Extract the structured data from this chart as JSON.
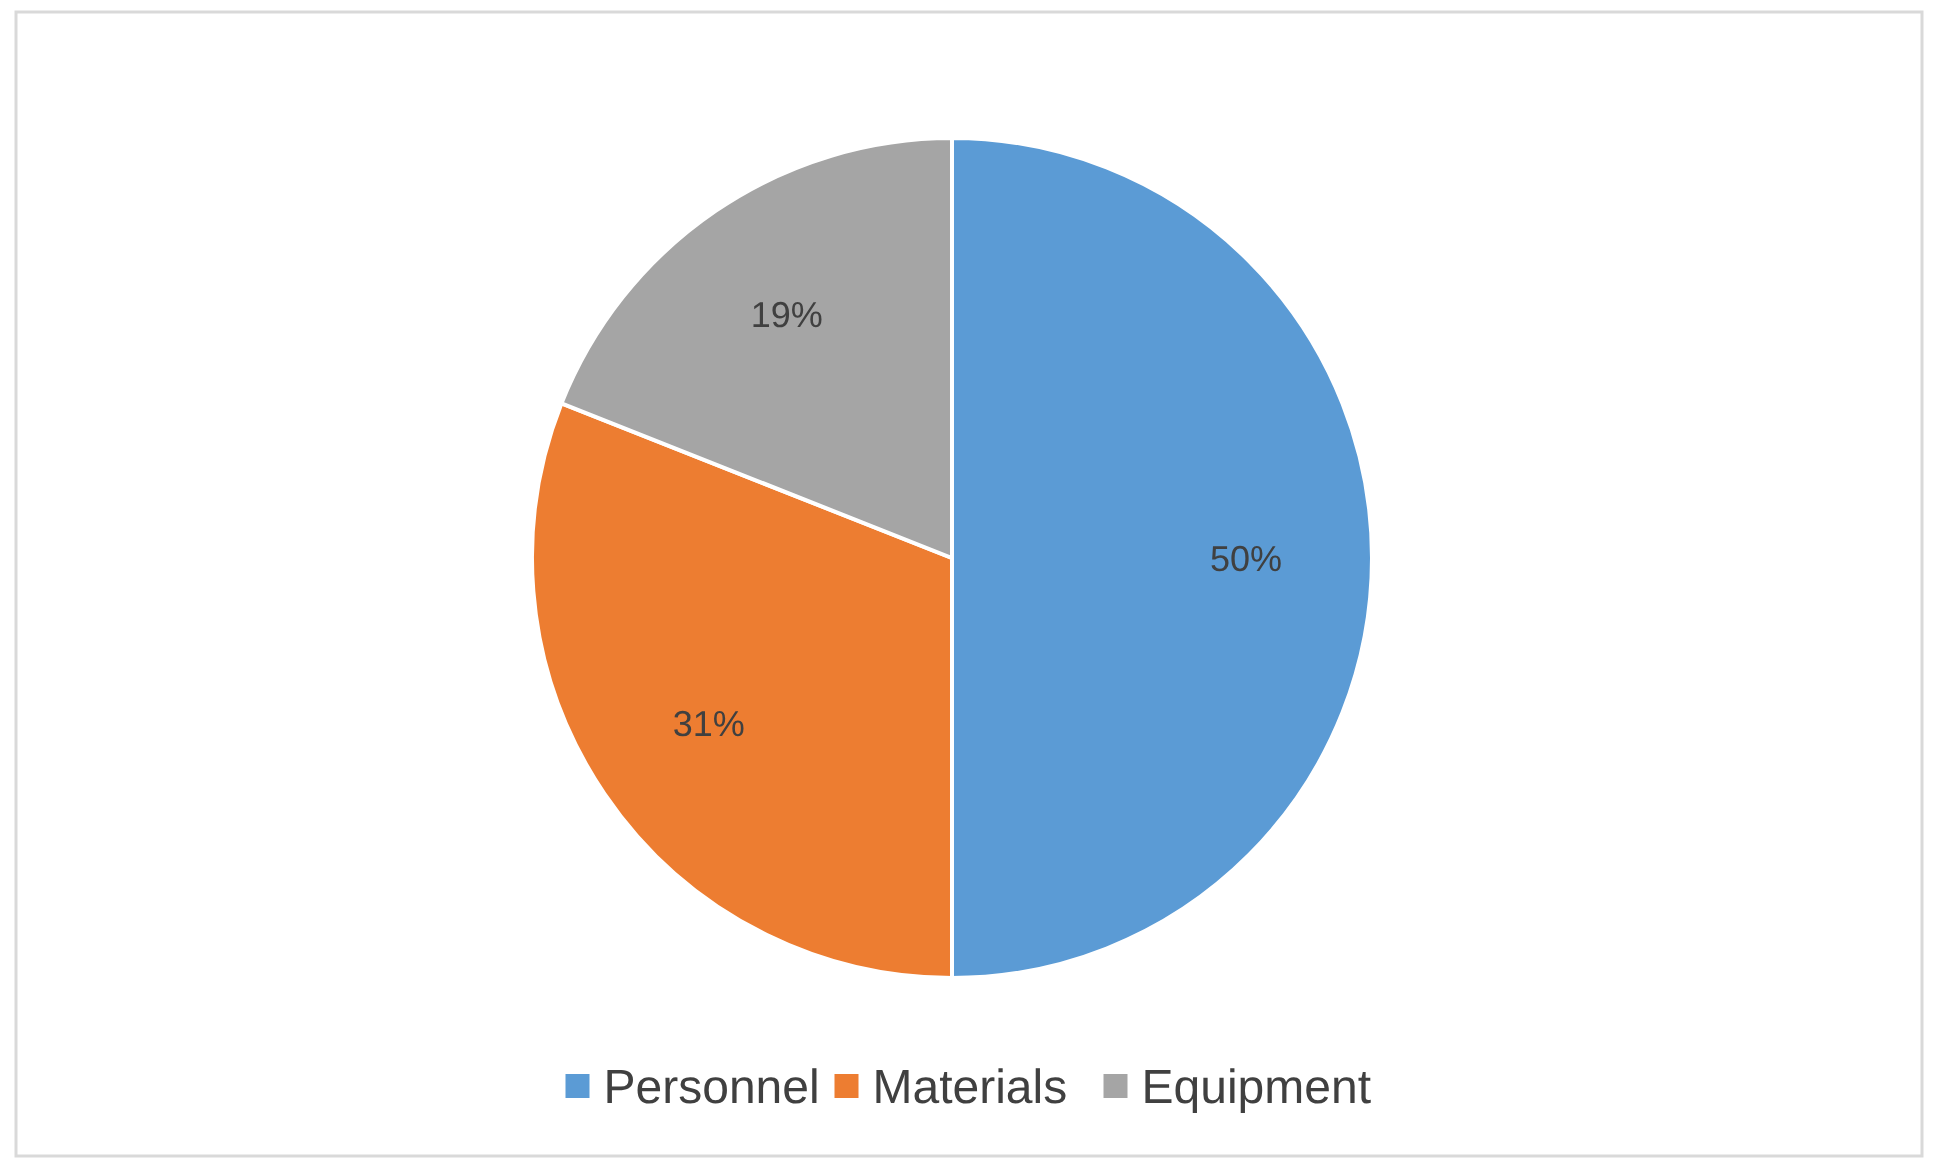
{
  "chart_data": {
    "type": "pie",
    "categories": [
      "Personnel",
      "Materials",
      "Equipment"
    ],
    "values": [
      50,
      31,
      19
    ],
    "value_labels": [
      "50%",
      "31%",
      "19%"
    ],
    "colors": [
      "#5b9bd5",
      "#ed7d31",
      "#a5a5a5"
    ],
    "legend": "bottom"
  }
}
